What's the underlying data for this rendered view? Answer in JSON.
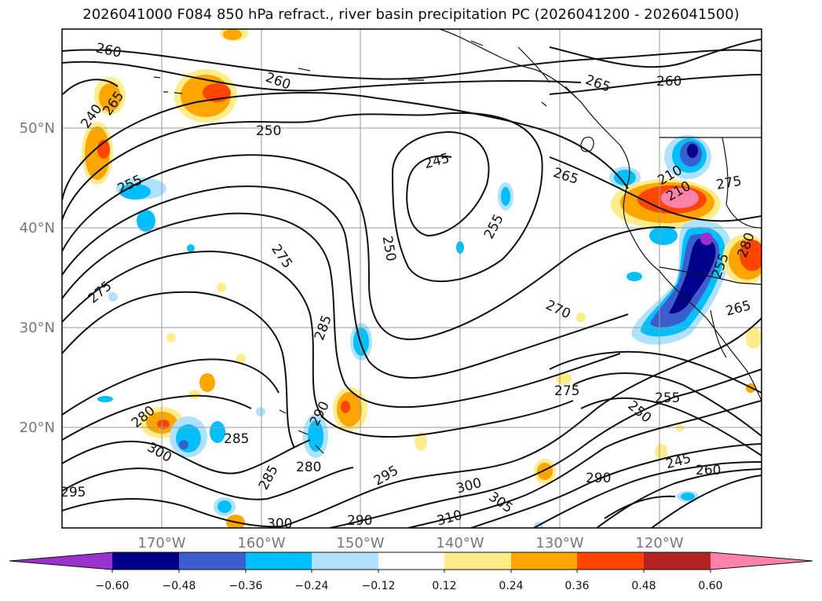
{
  "title": "2026041000 F084 850 hPa refract., river basin precipitation PC (2026041200 - 2026041500)",
  "lon_labels": [
    "170°W",
    "160°W",
    "150°W",
    "140°W",
    "130°W",
    "120°W"
  ],
  "lat_labels": [
    "50°N",
    "40°N",
    "30°N",
    "20°N"
  ],
  "colorbar": {
    "colors": [
      "#9932CC",
      "#00008B",
      "#3A5FCD",
      "#00BFFF",
      "#B0E2FF",
      "#FFFFFF",
      "#FFEC8B",
      "#FFA500",
      "#FF4500",
      "#B22222",
      "#FF82AB"
    ],
    "tick_labels": [
      "−0.60",
      "−0.48",
      "−0.36",
      "−0.24",
      "−0.12",
      "0.12",
      "0.24",
      "0.36",
      "0.48",
      "0.60"
    ]
  },
  "contour_labels": [
    "260",
    "260",
    "265",
    "260",
    "240",
    "265",
    "250",
    "245",
    "255",
    "265",
    "210",
    "275",
    "210",
    "255",
    "275",
    "250",
    "255",
    "275",
    "280",
    "270",
    "265",
    "285",
    "275",
    "255",
    "250",
    "280",
    "290",
    "285",
    "300",
    "285",
    "280",
    "295",
    "245",
    "260",
    "290",
    "300",
    "305",
    "310",
    "295",
    "300",
    "290"
  ]
}
